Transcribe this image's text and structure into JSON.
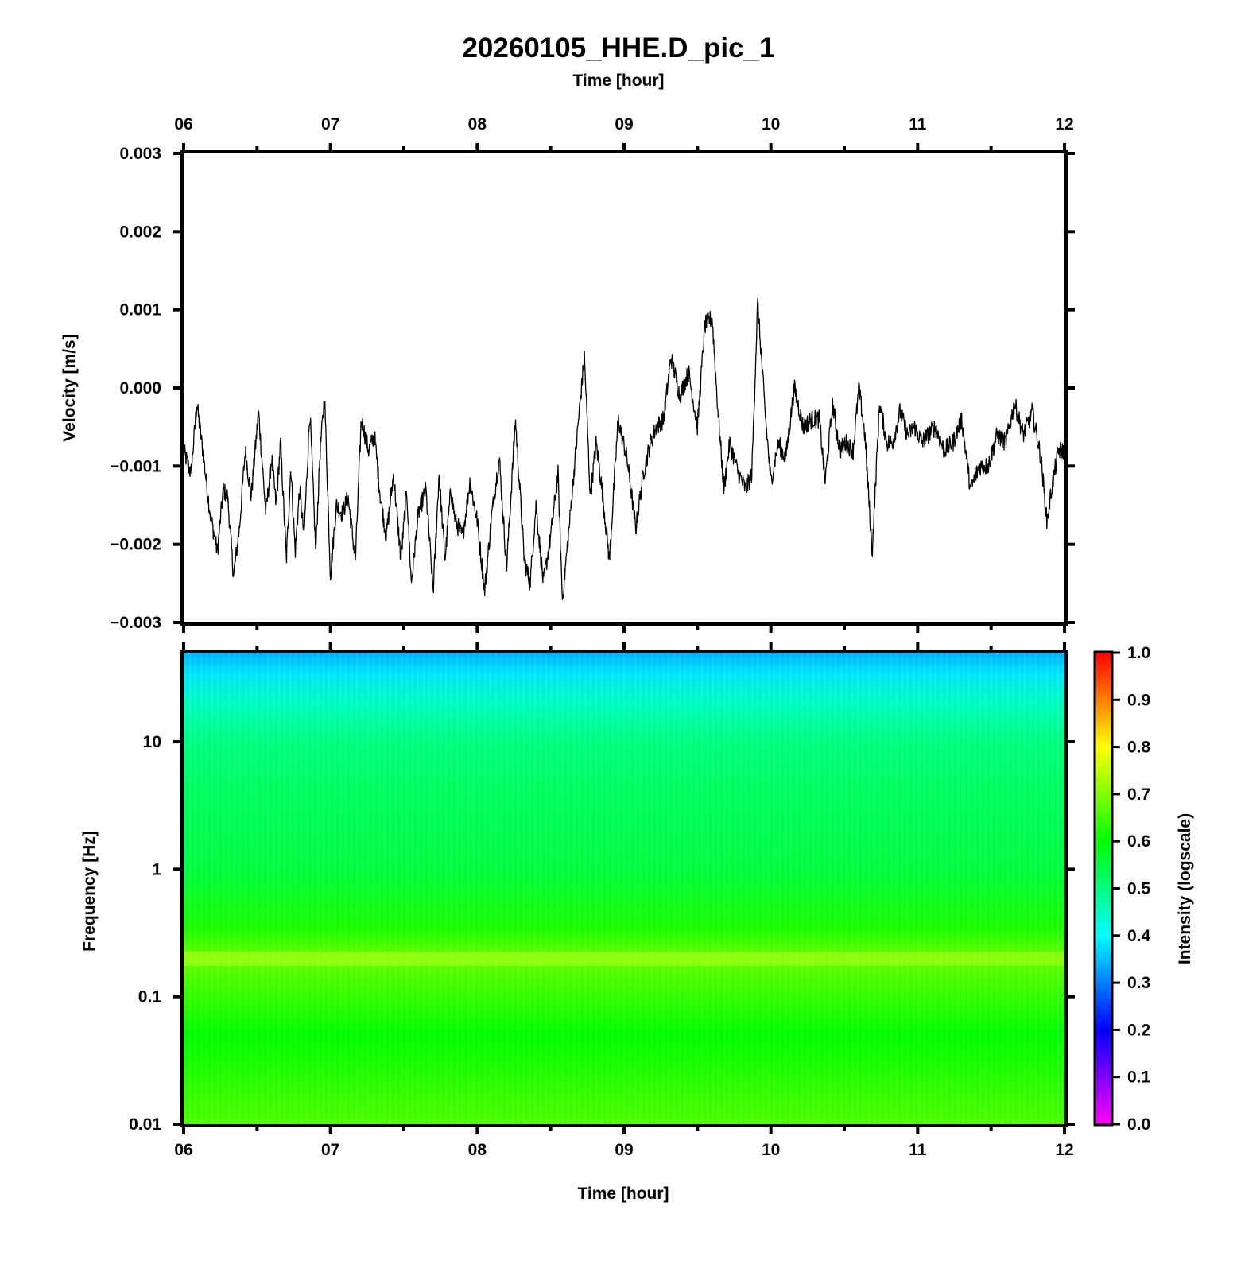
{
  "chart_data": [
    {
      "type": "line",
      "title": "20260105_HHE.D_pic_1",
      "top_xlabel": "Time [hour]",
      "ylabel": "Velocity [m/s]",
      "xlim": [
        6,
        12
      ],
      "ylim": [
        -0.003,
        0.003
      ],
      "x_ticks": [
        "06",
        "07",
        "08",
        "09",
        "10",
        "11",
        "12"
      ],
      "y_ticks": [
        "0.003",
        "0.002",
        "0.001",
        "0.000",
        "−0.001",
        "−0.002",
        "−0.003"
      ],
      "series": [
        {
          "name": "velocity",
          "x": [
            6.0,
            6.05,
            6.09,
            6.13,
            6.18,
            6.23,
            6.27,
            6.3,
            6.34,
            6.38,
            6.42,
            6.46,
            6.51,
            6.56,
            6.6,
            6.63,
            6.66,
            6.7,
            6.73,
            6.76,
            6.79,
            6.82,
            6.86,
            6.9,
            6.93,
            6.96,
            7.0,
            7.04,
            7.08,
            7.12,
            7.17,
            7.21,
            7.26,
            7.3,
            7.34,
            7.38,
            7.43,
            7.48,
            7.52,
            7.55,
            7.6,
            7.65,
            7.7,
            7.74,
            7.78,
            7.82,
            7.85,
            7.9,
            7.95,
            8.0,
            8.05,
            8.1,
            8.15,
            8.2,
            8.26,
            8.32,
            8.36,
            8.4,
            8.45,
            8.5,
            8.55,
            8.58,
            8.63,
            8.69,
            8.73,
            8.77,
            8.81,
            8.85,
            8.9,
            8.96,
            9.02,
            9.08,
            9.13,
            9.18,
            9.22,
            9.27,
            9.32,
            9.38,
            9.44,
            9.5,
            9.55,
            9.6,
            9.64,
            9.68,
            9.72,
            9.78,
            9.83,
            9.87,
            9.91,
            9.96,
            10.0,
            10.05,
            10.1,
            10.16,
            10.22,
            10.28,
            10.33,
            10.37,
            10.42,
            10.47,
            10.51,
            10.56,
            10.6,
            10.64,
            10.69,
            10.74,
            10.79,
            10.83,
            10.88,
            10.93,
            10.98,
            11.03,
            11.07,
            11.12,
            11.18,
            11.24,
            11.3,
            11.36,
            11.42,
            11.48,
            11.54,
            11.6,
            11.66,
            11.72,
            11.78,
            11.84,
            11.88,
            11.92,
            11.96,
            12.0
          ],
          "y": [
            -0.0008,
            -0.0011,
            -0.0002,
            -0.0008,
            -0.0016,
            -0.0021,
            -0.0013,
            -0.0014,
            -0.0024,
            -0.0018,
            -0.0008,
            -0.0014,
            -0.0003,
            -0.0016,
            -0.0009,
            -0.0015,
            -0.0007,
            -0.0022,
            -0.001,
            -0.0021,
            -0.0013,
            -0.0019,
            -0.0003,
            -0.0021,
            -0.0008,
            -0.0001,
            -0.0024,
            -0.0015,
            -0.0016,
            -0.0014,
            -0.0022,
            -0.0004,
            -0.0008,
            -0.0006,
            -0.0014,
            -0.0019,
            -0.0011,
            -0.0022,
            -0.0013,
            -0.0025,
            -0.0016,
            -0.0013,
            -0.0026,
            -0.0011,
            -0.0022,
            -0.0013,
            -0.0017,
            -0.0019,
            -0.0012,
            -0.0017,
            -0.0026,
            -0.0016,
            -0.0009,
            -0.0023,
            -0.0004,
            -0.0022,
            -0.0025,
            -0.0015,
            -0.0025,
            -0.0019,
            -0.0011,
            -0.0027,
            -0.0017,
            -0.0004,
            0.0004,
            -0.0014,
            -0.0007,
            -0.0013,
            -0.0022,
            -0.0004,
            -0.0009,
            -0.0018,
            -0.0011,
            -0.0007,
            -0.0005,
            -0.0004,
            0.0004,
            -0.0001,
            0.0002,
            -0.0005,
            0.0008,
            0.0009,
            -0.0003,
            -0.0013,
            -0.0007,
            -0.0011,
            -0.0013,
            -0.0011,
            0.0011,
            -0.0003,
            -0.0012,
            -0.0007,
            -0.0009,
            0.0,
            -0.0005,
            -0.0004,
            -0.0004,
            -0.0012,
            -0.0002,
            -0.0008,
            -0.0007,
            -0.0008,
            0.0,
            -0.0006,
            -0.0021,
            -0.0002,
            -0.0007,
            -0.0007,
            -0.0003,
            -0.0006,
            -0.0005,
            -0.0007,
            -0.0006,
            -0.0005,
            -0.0008,
            -0.0007,
            -0.0004,
            -0.0013,
            -0.001,
            -0.001,
            -0.0006,
            -0.0007,
            -0.0002,
            -0.0006,
            -0.0003,
            -0.0009,
            -0.0017,
            -0.0012,
            -0.0008,
            -0.0008
          ]
        }
      ]
    },
    {
      "type": "heatmap",
      "xlabel": "Time [hour]",
      "ylabel": "Frequency [Hz]",
      "xlim": [
        6,
        12
      ],
      "ylim": [
        0.01,
        50
      ],
      "yscale": "log",
      "x_ticks": [
        "06",
        "07",
        "08",
        "09",
        "10",
        "11",
        "12"
      ],
      "y_ticks": [
        "10",
        "1",
        "0.1",
        "0.01"
      ],
      "intensity_profile": {
        "frequency": [
          0.01,
          0.05,
          0.2,
          0.35,
          1,
          5,
          10,
          20,
          35,
          50
        ],
        "intensity": [
          0.66,
          0.6,
          0.68,
          0.62,
          0.55,
          0.52,
          0.5,
          0.45,
          0.38,
          0.34
        ]
      },
      "colorbar": {
        "label": "Intensity (logscale)",
        "range": [
          0.0,
          1.0
        ],
        "ticks": [
          "1.0",
          "0.9",
          "0.8",
          "0.7",
          "0.6",
          "0.5",
          "0.4",
          "0.3",
          "0.2",
          "0.1",
          "0.0"
        ]
      }
    }
  ]
}
